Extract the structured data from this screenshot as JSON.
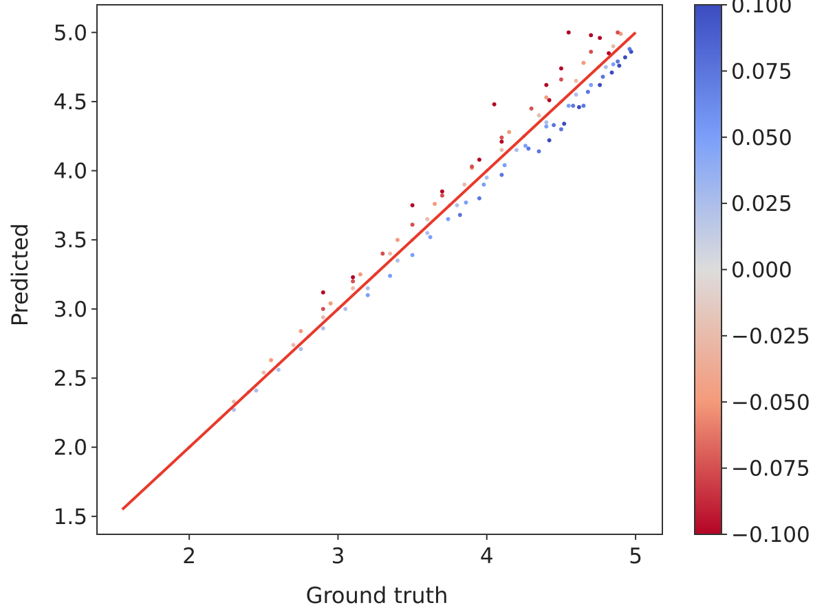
{
  "chart_data": {
    "type": "scatter",
    "title": "",
    "xlabel": "Ground truth",
    "ylabel": "Predicted",
    "xlim": [
      1.38,
      5.18
    ],
    "ylim": [
      1.37,
      5.2
    ],
    "xticks": [
      2,
      3,
      4,
      5
    ],
    "xtick_labels": [
      "2",
      "3",
      "4",
      "5"
    ],
    "yticks": [
      1.5,
      2.0,
      2.5,
      3.0,
      3.5,
      4.0,
      4.5,
      5.0
    ],
    "ytick_labels": [
      "1.5",
      "2.0",
      "2.5",
      "3.0",
      "3.5",
      "4.0",
      "4.5",
      "5.0"
    ],
    "grid": false,
    "colormap": "coolwarm_r",
    "colorbar": {
      "range": [
        -0.1,
        0.1
      ],
      "ticks": [
        0.1,
        0.075,
        0.05,
        0.025,
        0.0,
        -0.025,
        -0.05,
        -0.075,
        -0.1
      ],
      "tick_labels": [
        "0.100",
        "0.075",
        "0.050",
        "0.025",
        "0.000",
        "−0.025",
        "−0.050",
        "−0.075",
        "−0.100"
      ]
    },
    "reference_line": {
      "color": "#e8392b",
      "x": [
        1.55,
        5.0
      ],
      "y": [
        1.55,
        5.0
      ]
    },
    "series": [
      {
        "color_value": 0.1,
        "x": [
          4.76,
          4.84,
          4.89,
          4.93,
          4.97,
          4.62,
          4.52,
          4.42
        ],
        "y": [
          4.62,
          4.71,
          4.76,
          4.82,
          4.86,
          4.46,
          4.34,
          4.22
        ]
      },
      {
        "color_value": 0.075,
        "x": [
          3.95,
          4.1,
          4.28,
          4.45,
          4.58,
          4.68,
          4.78,
          4.88,
          4.96,
          4.35,
          4.5,
          4.65,
          3.82
        ],
        "y": [
          3.8,
          3.97,
          4.16,
          4.33,
          4.47,
          4.57,
          4.68,
          4.79,
          4.88,
          4.14,
          4.3,
          4.47,
          3.68
        ]
      },
      {
        "color_value": 0.05,
        "x": [
          3.2,
          3.35,
          3.5,
          3.62,
          3.74,
          3.86,
          3.98,
          4.12,
          4.26,
          4.4,
          4.55,
          4.7,
          4.85
        ],
        "y": [
          3.1,
          3.24,
          3.39,
          3.52,
          3.65,
          3.77,
          3.9,
          4.04,
          4.18,
          4.32,
          4.47,
          4.62,
          4.77
        ]
      },
      {
        "color_value": 0.025,
        "x": [
          2.3,
          2.45,
          2.6,
          2.75,
          2.9,
          3.05,
          3.2,
          3.4,
          3.6,
          3.8,
          4.0,
          4.2,
          4.4,
          4.6,
          4.8
        ],
        "y": [
          2.27,
          2.41,
          2.56,
          2.71,
          2.86,
          3.0,
          3.15,
          3.35,
          3.55,
          3.75,
          3.95,
          4.15,
          4.35,
          4.55,
          4.75
        ]
      },
      {
        "color_value": 0.0,
        "x": [
          1.8,
          2.0,
          2.2,
          2.4,
          2.6,
          2.8,
          3.0,
          3.25,
          3.5,
          3.75,
          4.0,
          4.25,
          4.5,
          4.75,
          4.95
        ],
        "y": [
          1.8,
          2.0,
          2.2,
          2.4,
          2.6,
          2.8,
          3.0,
          3.25,
          3.5,
          3.75,
          4.0,
          4.25,
          4.5,
          4.75,
          4.95
        ]
      },
      {
        "color_value": -0.025,
        "x": [
          2.3,
          2.5,
          2.7,
          2.9,
          3.1,
          3.35,
          3.6,
          3.85,
          4.1,
          4.35,
          4.6,
          4.85
        ],
        "y": [
          2.33,
          2.54,
          2.74,
          2.94,
          3.15,
          3.4,
          3.65,
          3.9,
          4.15,
          4.4,
          4.65,
          4.9
        ]
      },
      {
        "color_value": -0.05,
        "x": [
          2.55,
          2.75,
          2.95,
          3.15,
          3.4,
          3.65,
          3.9,
          4.15,
          4.4,
          4.65,
          4.9
        ],
        "y": [
          2.63,
          2.84,
          3.04,
          3.25,
          3.5,
          3.76,
          4.02,
          4.28,
          4.53,
          4.78,
          4.99
        ]
      },
      {
        "color_value": -0.075,
        "x": [
          2.9,
          3.1,
          3.3,
          3.5,
          3.7,
          3.9,
          4.1,
          4.3,
          4.5,
          4.7,
          4.88
        ],
        "y": [
          3.0,
          3.2,
          3.4,
          3.61,
          3.82,
          4.03,
          4.24,
          4.45,
          4.66,
          4.86,
          5.0
        ]
      },
      {
        "color_value": -0.1,
        "x": [
          2.9,
          3.1,
          3.5,
          3.7,
          3.95,
          4.05,
          4.1,
          4.4,
          4.42,
          4.5,
          4.55,
          4.7,
          4.76,
          4.82
        ],
        "y": [
          3.12,
          3.23,
          3.75,
          3.85,
          4.08,
          4.48,
          4.21,
          4.62,
          4.51,
          4.74,
          5.0,
          4.98,
          4.96,
          4.85
        ]
      }
    ]
  }
}
